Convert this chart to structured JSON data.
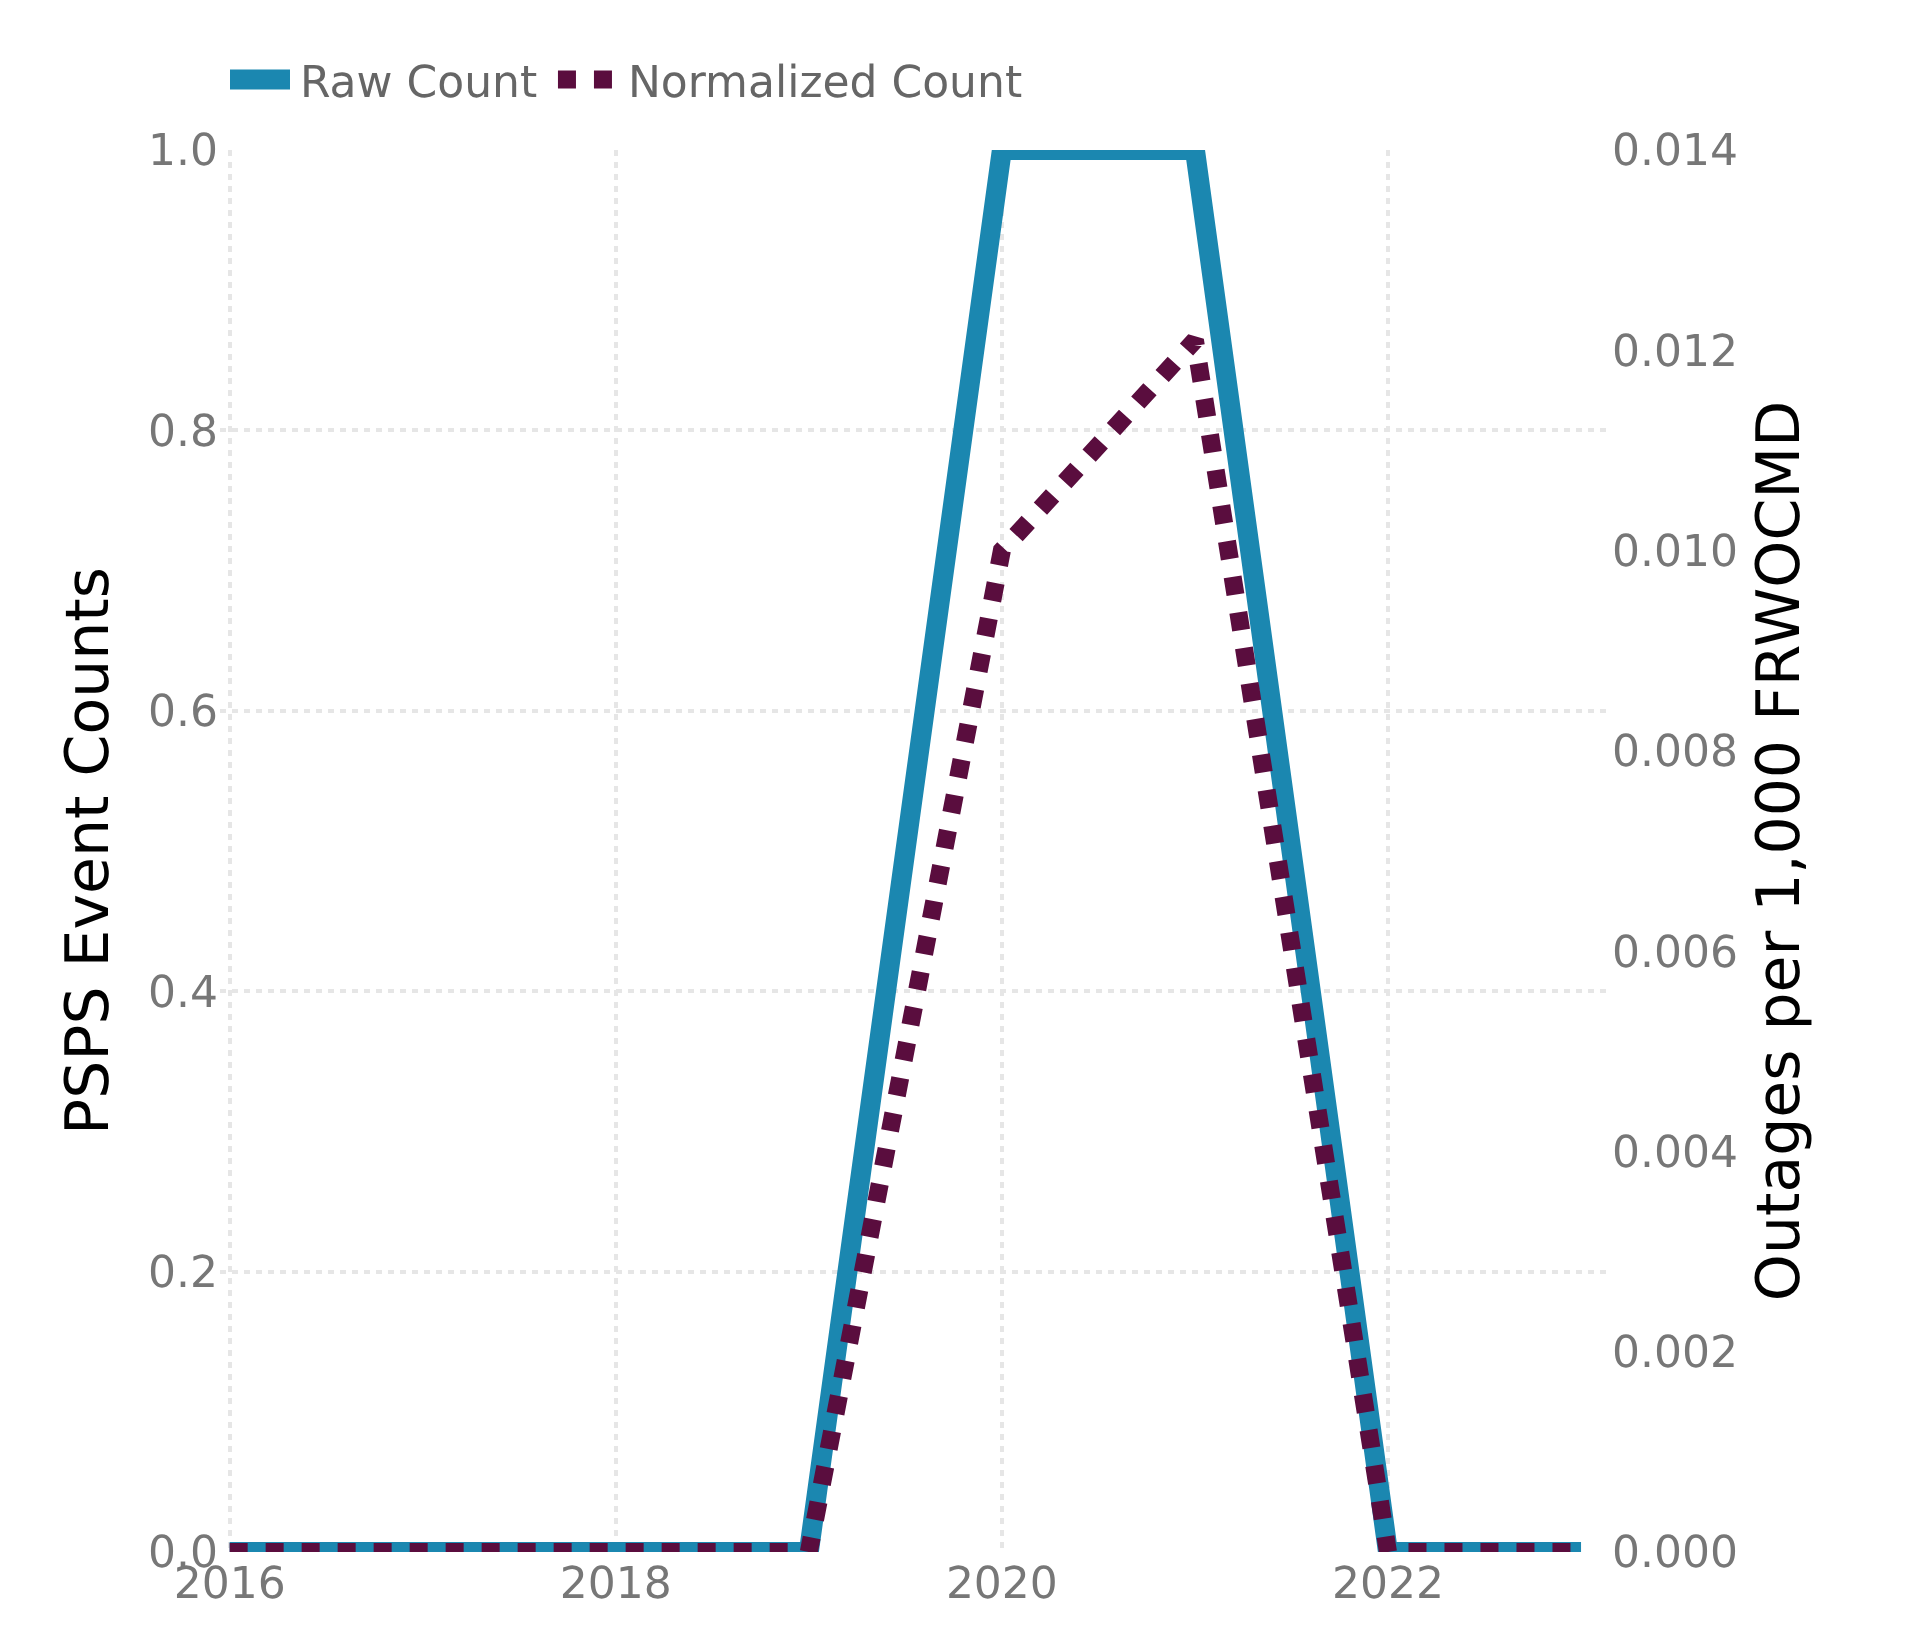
{
  "chart_data": {
    "type": "line",
    "xlabel": null,
    "ylabel": "PSPS Event Counts",
    "y2label": "Outages per 1,000 FRWOCMD",
    "x": [
      2016,
      2017,
      2018,
      2019,
      2020,
      2021,
      2022,
      2023
    ],
    "series": [
      {
        "name": "Raw Count",
        "color": "#1b87b0",
        "line_style": "solid",
        "values": [
          0,
          0,
          0,
          0,
          1,
          1,
          0,
          0
        ]
      },
      {
        "name": "Normalized Count",
        "color": "#5a0d3e",
        "line_style": "dotted",
        "axis": "y2",
        "values": [
          0,
          0,
          0,
          0,
          0.01,
          0.0121,
          0,
          0
        ]
      }
    ],
    "xlim": [
      2015.95,
      2023.15
    ],
    "xticks": [
      2016,
      2018,
      2020,
      2022
    ],
    "ylim": [
      0,
      1
    ],
    "yticks": [
      {
        "value": 0,
        "label": "0.0"
      },
      {
        "value": 0.2,
        "label": "0.2"
      },
      {
        "value": 0.4,
        "label": "0.4"
      },
      {
        "value": 0.6,
        "label": "0.6"
      },
      {
        "value": 0.8,
        "label": "0.8"
      },
      {
        "value": 1,
        "label": "1.0"
      }
    ],
    "y2lim": [
      0,
      0.014
    ],
    "y2ticks": [
      {
        "value": 0,
        "label": "0.000"
      },
      {
        "value": 0.002,
        "label": "0.002"
      },
      {
        "value": 0.004,
        "label": "0.004"
      },
      {
        "value": 0.006,
        "label": "0.006"
      },
      {
        "value": 0.008,
        "label": "0.008"
      },
      {
        "value": 0.01,
        "label": "0.010"
      },
      {
        "value": 0.012,
        "label": "0.012"
      },
      {
        "value": 0.014,
        "label": "0.014"
      }
    ],
    "grid": true,
    "legend": "top left",
    "marker": "none"
  }
}
